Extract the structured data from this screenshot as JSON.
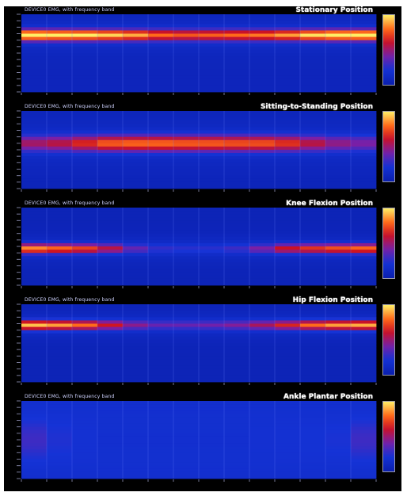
{
  "chart_data": [
    {
      "type": "heatmap",
      "title": "Stationary Position",
      "subtitle": "DEVICE0  EMG, with frequency band",
      "x_bins": 14,
      "y_bins": 24,
      "band_center": 0.27,
      "band_width": 0.07,
      "profile": [
        0.98,
        0.95,
        0.93,
        0.88,
        0.82,
        0.72,
        0.68,
        0.7,
        0.72,
        0.74,
        0.8,
        0.9,
        0.97,
        0.98
      ],
      "baseline": 0.07
    },
    {
      "type": "heatmap",
      "title": "Sitting-to-Standing Position",
      "subtitle": "DEVICE0  EMG, with frequency band",
      "x_bins": 14,
      "y_bins": 24,
      "band_center": 0.42,
      "band_width": 0.1,
      "profile": [
        0.45,
        0.5,
        0.6,
        0.7,
        0.72,
        0.72,
        0.7,
        0.7,
        0.68,
        0.68,
        0.62,
        0.5,
        0.4,
        0.35
      ],
      "baseline": 0.06
    },
    {
      "type": "heatmap",
      "title": "Knee Flexion Position",
      "subtitle": "DEVICE0  EMG, with frequency band",
      "x_bins": 14,
      "y_bins": 24,
      "band_center": 0.53,
      "band_width": 0.06,
      "profile": [
        0.78,
        0.72,
        0.65,
        0.5,
        0.3,
        0.2,
        0.18,
        0.18,
        0.22,
        0.35,
        0.55,
        0.62,
        0.68,
        0.72
      ],
      "baseline": 0.05
    },
    {
      "type": "heatmap",
      "title": "Hip Flexion Position",
      "subtitle": "DEVICE0  EMG, with frequency band",
      "x_bins": 14,
      "y_bins": 24,
      "band_center": 0.27,
      "band_width": 0.06,
      "profile": [
        0.85,
        0.8,
        0.72,
        0.55,
        0.38,
        0.3,
        0.3,
        0.32,
        0.36,
        0.45,
        0.58,
        0.72,
        0.8,
        0.82
      ],
      "baseline": 0.05
    },
    {
      "type": "heatmap",
      "title": "Ankle Plantar Position",
      "subtitle": "DEVICE0  EMG, with frequency band",
      "x_bins": 14,
      "y_bins": 24,
      "band_center": 0.5,
      "band_width": 0.25,
      "profile": [
        0.22,
        0.16,
        0.12,
        0.1,
        0.1,
        0.1,
        0.1,
        0.1,
        0.1,
        0.11,
        0.12,
        0.13,
        0.15,
        0.22
      ],
      "baseline": 0.12
    }
  ],
  "colors": {
    "frame": "#000000",
    "low": "#1533d6",
    "mid": "#cc1122",
    "high": "#ffee66",
    "grid": "#6f84ff",
    "axis_text": "#c8ccff"
  }
}
